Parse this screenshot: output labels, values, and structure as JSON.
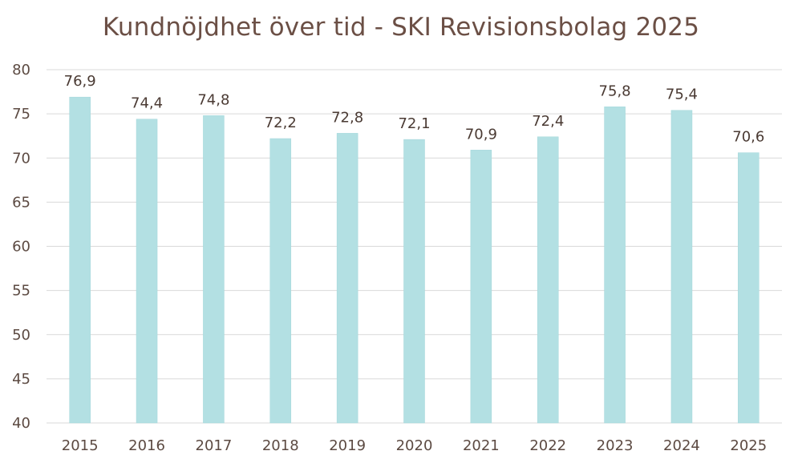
{
  "chart_data": {
    "type": "bar",
    "title": "Kundnöjdhet över tid - SKI Revisionsbolag 2025",
    "xlabel": "",
    "ylabel": "",
    "categories": [
      "2015",
      "2016",
      "2017",
      "2018",
      "2019",
      "2020",
      "2021",
      "2022",
      "2023",
      "2024",
      "2025"
    ],
    "values": [
      76.9,
      74.4,
      74.8,
      72.2,
      72.8,
      72.1,
      70.9,
      72.4,
      75.8,
      75.4,
      70.6
    ],
    "data_labels": [
      "76,9",
      "74,4",
      "74,8",
      "72,2",
      "72,8",
      "72,1",
      "70,9",
      "72,4",
      "75,8",
      "75,4",
      "70,6"
    ],
    "ylim": [
      40,
      80
    ],
    "yticks": [
      40,
      45,
      50,
      55,
      60,
      65,
      70,
      75,
      80
    ],
    "grid": true,
    "legend": "none",
    "colors": {
      "bar": "#b3e0e3",
      "bar_stroke": "#a3d6da",
      "grid": "#d9d9d9",
      "axis_text": "#5c4a42",
      "title": "#6b4f45"
    }
  }
}
